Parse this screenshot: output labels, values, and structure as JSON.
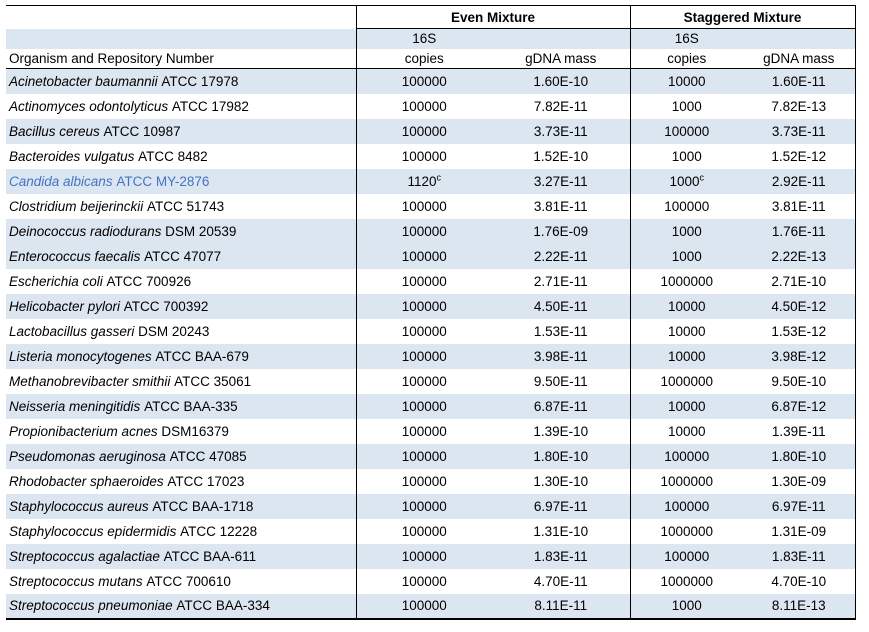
{
  "table": {
    "headers": {
      "organism_col": "Organism and Repository Number",
      "even_group": "Even Mixture",
      "staggered_group": "Staggered Mixture",
      "s16": "16S",
      "copies": "copies",
      "gdna_mass": "gDNA mass"
    },
    "colors": {
      "stripe": "#dce6f1",
      "accent_text": "#4472c4",
      "border": "#000000"
    },
    "rows": [
      {
        "name": "Acinetobacter baumannii",
        "repo": "ATCC 17978",
        "even_copies": "100000",
        "even_gdna": "1.60E-10",
        "stag_copies": "10000",
        "stag_gdna": "1.60E-11",
        "shaded": true
      },
      {
        "name": "Actinomyces odontolyticus",
        "repo": "ATCC 17982",
        "even_copies": "100000",
        "even_gdna": "7.82E-11",
        "stag_copies": "1000",
        "stag_gdna": "7.82E-13",
        "shaded": false
      },
      {
        "name": "Bacillus cereus",
        "repo": "ATCC 10987",
        "even_copies": "100000",
        "even_gdna": "3.73E-11",
        "stag_copies": "100000",
        "stag_gdna": "3.73E-11",
        "shaded": true
      },
      {
        "name": "Bacteroides vulgatus",
        "repo": "ATCC 8482",
        "even_copies": "100000",
        "even_gdna": "1.52E-10",
        "stag_copies": "1000",
        "stag_gdna": "1.52E-12",
        "shaded": false
      },
      {
        "name": "Candida albicans",
        "repo": "ATCC MY-2876",
        "even_copies": "1120",
        "even_copies_sup": "c",
        "even_gdna": "3.27E-11",
        "stag_copies": "1000",
        "stag_copies_sup": "c",
        "stag_gdna": "2.92E-11",
        "shaded": true,
        "accent": true
      },
      {
        "name": "Clostridium beijerinckii",
        "repo": "ATCC 51743",
        "even_copies": "100000",
        "even_gdna": "3.81E-11",
        "stag_copies": "100000",
        "stag_gdna": "3.81E-11",
        "shaded": false
      },
      {
        "name": "Deinococcus radiodurans",
        "repo": "DSM 20539",
        "even_copies": "100000",
        "even_gdna": "1.76E-09",
        "stag_copies": "1000",
        "stag_gdna": "1.76E-11",
        "shaded": true
      },
      {
        "name": "Enterococcus faecalis",
        "repo": "ATCC 47077",
        "even_copies": "100000",
        "even_gdna": "2.22E-11",
        "stag_copies": "1000",
        "stag_gdna": "2.22E-13",
        "shaded": true
      },
      {
        "name": "Escherichia coli",
        "repo": "ATCC 700926",
        "even_copies": "100000",
        "even_gdna": "2.71E-11",
        "stag_copies": "1000000",
        "stag_gdna": "2.71E-10",
        "shaded": false
      },
      {
        "name": "Helicobacter pylori",
        "repo": "ATCC 700392",
        "even_copies": "100000",
        "even_gdna": "4.50E-11",
        "stag_copies": "10000",
        "stag_gdna": "4.50E-12",
        "shaded": true
      },
      {
        "name": "Lactobacillus gasseri",
        "repo": "DSM 20243",
        "even_copies": "100000",
        "even_gdna": "1.53E-11",
        "stag_copies": "10000",
        "stag_gdna": "1.53E-12",
        "shaded": false
      },
      {
        "name": "Listeria monocytogenes",
        "repo": "ATCC BAA-679",
        "even_copies": "100000",
        "even_gdna": "3.98E-11",
        "stag_copies": "10000",
        "stag_gdna": "3.98E-12",
        "shaded": true
      },
      {
        "name": "Methanobrevibacter smithii",
        "repo": "ATCC 35061",
        "even_copies": "100000",
        "even_gdna": "9.50E-11",
        "stag_copies": "1000000",
        "stag_gdna": "9.50E-10",
        "shaded": false
      },
      {
        "name": "Neisseria meningitidis",
        "repo": "ATCC BAA-335",
        "even_copies": "100000",
        "even_gdna": "6.87E-11",
        "stag_copies": "10000",
        "stag_gdna": "6.87E-12",
        "shaded": true
      },
      {
        "name": "Propionibacterium acnes",
        "repo": "DSM16379",
        "even_copies": "100000",
        "even_gdna": "1.39E-10",
        "stag_copies": "10000",
        "stag_gdna": "1.39E-11",
        "shaded": false
      },
      {
        "name": "Pseudomonas aeruginosa",
        "repo": "ATCC 47085",
        "even_copies": "100000",
        "even_gdna": "1.80E-10",
        "stag_copies": "100000",
        "stag_gdna": "1.80E-10",
        "shaded": true
      },
      {
        "name": "Rhodobacter sphaeroides",
        "repo": "ATCC 17023",
        "even_copies": "100000",
        "even_gdna": "1.30E-10",
        "stag_copies": "1000000",
        "stag_gdna": "1.30E-09",
        "shaded": false
      },
      {
        "name": "Staphylococcus aureus",
        "repo": "ATCC BAA-1718",
        "even_copies": "100000",
        "even_gdna": "6.97E-11",
        "stag_copies": "100000",
        "stag_gdna": "6.97E-11",
        "shaded": true
      },
      {
        "name": "Staphylococcus epidermidis",
        "repo": "ATCC 12228",
        "even_copies": "100000",
        "even_gdna": "1.31E-10",
        "stag_copies": "1000000",
        "stag_gdna": "1.31E-09",
        "shaded": false
      },
      {
        "name": "Streptococcus agalactiae",
        "repo": "ATCC BAA-611",
        "even_copies": "100000",
        "even_gdna": "1.83E-11",
        "stag_copies": "100000",
        "stag_gdna": "1.83E-11",
        "shaded": true
      },
      {
        "name": "Streptococcus mutans",
        "repo": "ATCC 700610",
        "even_copies": "100000",
        "even_gdna": "4.70E-11",
        "stag_copies": "1000000",
        "stag_gdna": "4.70E-10",
        "shaded": false
      },
      {
        "name": "Streptococcus pneumoniae",
        "repo": "ATCC BAA-334",
        "even_copies": "100000",
        "even_gdna": "8.11E-11",
        "stag_copies": "1000",
        "stag_gdna": "8.11E-13",
        "shaded": true
      }
    ]
  }
}
